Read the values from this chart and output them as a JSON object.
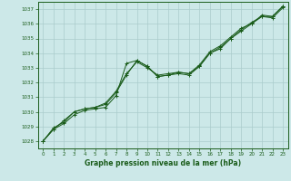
{
  "title": "Graphe pression niveau de la mer (hPa)",
  "bg_color": "#cce8e8",
  "grid_color": "#aacccc",
  "line_color": "#1a5c1a",
  "marker_color": "#1a5c1a",
  "xlim": [
    -0.5,
    23.5
  ],
  "ylim": [
    1027.5,
    1037.5
  ],
  "yticks": [
    1028,
    1029,
    1030,
    1031,
    1032,
    1033,
    1034,
    1035,
    1036,
    1037
  ],
  "xticks": [
    0,
    1,
    2,
    3,
    4,
    5,
    6,
    7,
    8,
    9,
    10,
    11,
    12,
    13,
    14,
    15,
    16,
    17,
    18,
    19,
    20,
    21,
    22,
    23
  ],
  "series1_x": [
    0,
    1,
    2,
    3,
    4,
    5,
    6,
    7,
    8,
    9,
    10,
    11,
    12,
    13,
    14,
    15,
    16,
    17,
    18,
    19,
    20,
    21,
    22,
    23
  ],
  "series1_y": [
    1028.0,
    1028.8,
    1029.2,
    1029.8,
    1030.1,
    1030.2,
    1030.3,
    1031.1,
    1033.3,
    1033.5,
    1033.1,
    1032.4,
    1032.5,
    1032.6,
    1032.5,
    1033.1,
    1034.0,
    1034.3,
    1035.0,
    1035.5,
    1036.0,
    1036.5,
    1036.5,
    1037.2
  ],
  "series2_x": [
    0,
    1,
    2,
    3,
    4,
    5,
    6,
    7,
    8,
    9,
    10,
    11,
    12,
    13,
    14,
    15,
    16,
    17,
    18,
    19,
    20,
    21,
    22,
    23
  ],
  "series2_y": [
    1028.0,
    1028.8,
    1029.4,
    1030.0,
    1030.2,
    1030.3,
    1030.5,
    1031.3,
    1032.5,
    1033.5,
    1033.1,
    1032.4,
    1032.5,
    1032.7,
    1032.6,
    1033.2,
    1034.1,
    1034.5,
    1035.1,
    1035.7,
    1036.0,
    1036.6,
    1036.5,
    1037.2
  ],
  "series3_x": [
    0,
    1,
    2,
    3,
    4,
    5,
    6,
    7,
    8,
    9,
    10,
    11,
    12,
    13,
    14,
    15,
    16,
    17,
    18,
    19,
    20,
    21,
    22,
    23
  ],
  "series3_y": [
    1028.0,
    1028.9,
    1029.3,
    1030.0,
    1030.2,
    1030.3,
    1030.6,
    1031.4,
    1032.6,
    1033.4,
    1033.0,
    1032.5,
    1032.6,
    1032.7,
    1032.6,
    1033.1,
    1034.0,
    1034.4,
    1035.0,
    1035.6,
    1036.1,
    1036.5,
    1036.4,
    1037.1
  ]
}
